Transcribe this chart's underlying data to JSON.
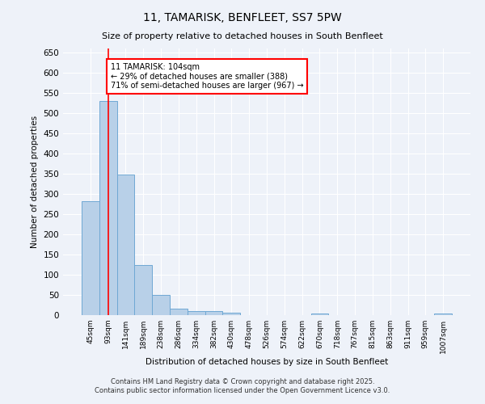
{
  "title": "11, TAMARISK, BENFLEET, SS7 5PW",
  "subtitle": "Size of property relative to detached houses in South Benfleet",
  "xlabel": "Distribution of detached houses by size in South Benfleet",
  "ylabel": "Number of detached properties",
  "bar_color": "#b8d0e8",
  "bar_edge_color": "#6fa8d4",
  "categories": [
    "45sqm",
    "93sqm",
    "141sqm",
    "189sqm",
    "238sqm",
    "286sqm",
    "334sqm",
    "382sqm",
    "430sqm",
    "478sqm",
    "526sqm",
    "574sqm",
    "622sqm",
    "670sqm",
    "718sqm",
    "767sqm",
    "815sqm",
    "863sqm",
    "911sqm",
    "959sqm",
    "1007sqm"
  ],
  "values": [
    283,
    530,
    348,
    125,
    50,
    16,
    11,
    10,
    7,
    0,
    0,
    0,
    0,
    5,
    0,
    0,
    0,
    0,
    0,
    0,
    5
  ],
  "ylim": [
    0,
    660
  ],
  "yticks": [
    0,
    50,
    100,
    150,
    200,
    250,
    300,
    350,
    400,
    450,
    500,
    550,
    600,
    650
  ],
  "property_label": "11 TAMARISK: 104sqm",
  "pct_smaller": 29,
  "n_smaller": 388,
  "pct_larger_semi": 71,
  "n_larger_semi": 967,
  "vline_bin_index": 1,
  "footer1": "Contains HM Land Registry data © Crown copyright and database right 2025.",
  "footer2": "Contains public sector information licensed under the Open Government Licence v3.0.",
  "background_color": "#eef2f9",
  "grid_color": "#ffffff"
}
